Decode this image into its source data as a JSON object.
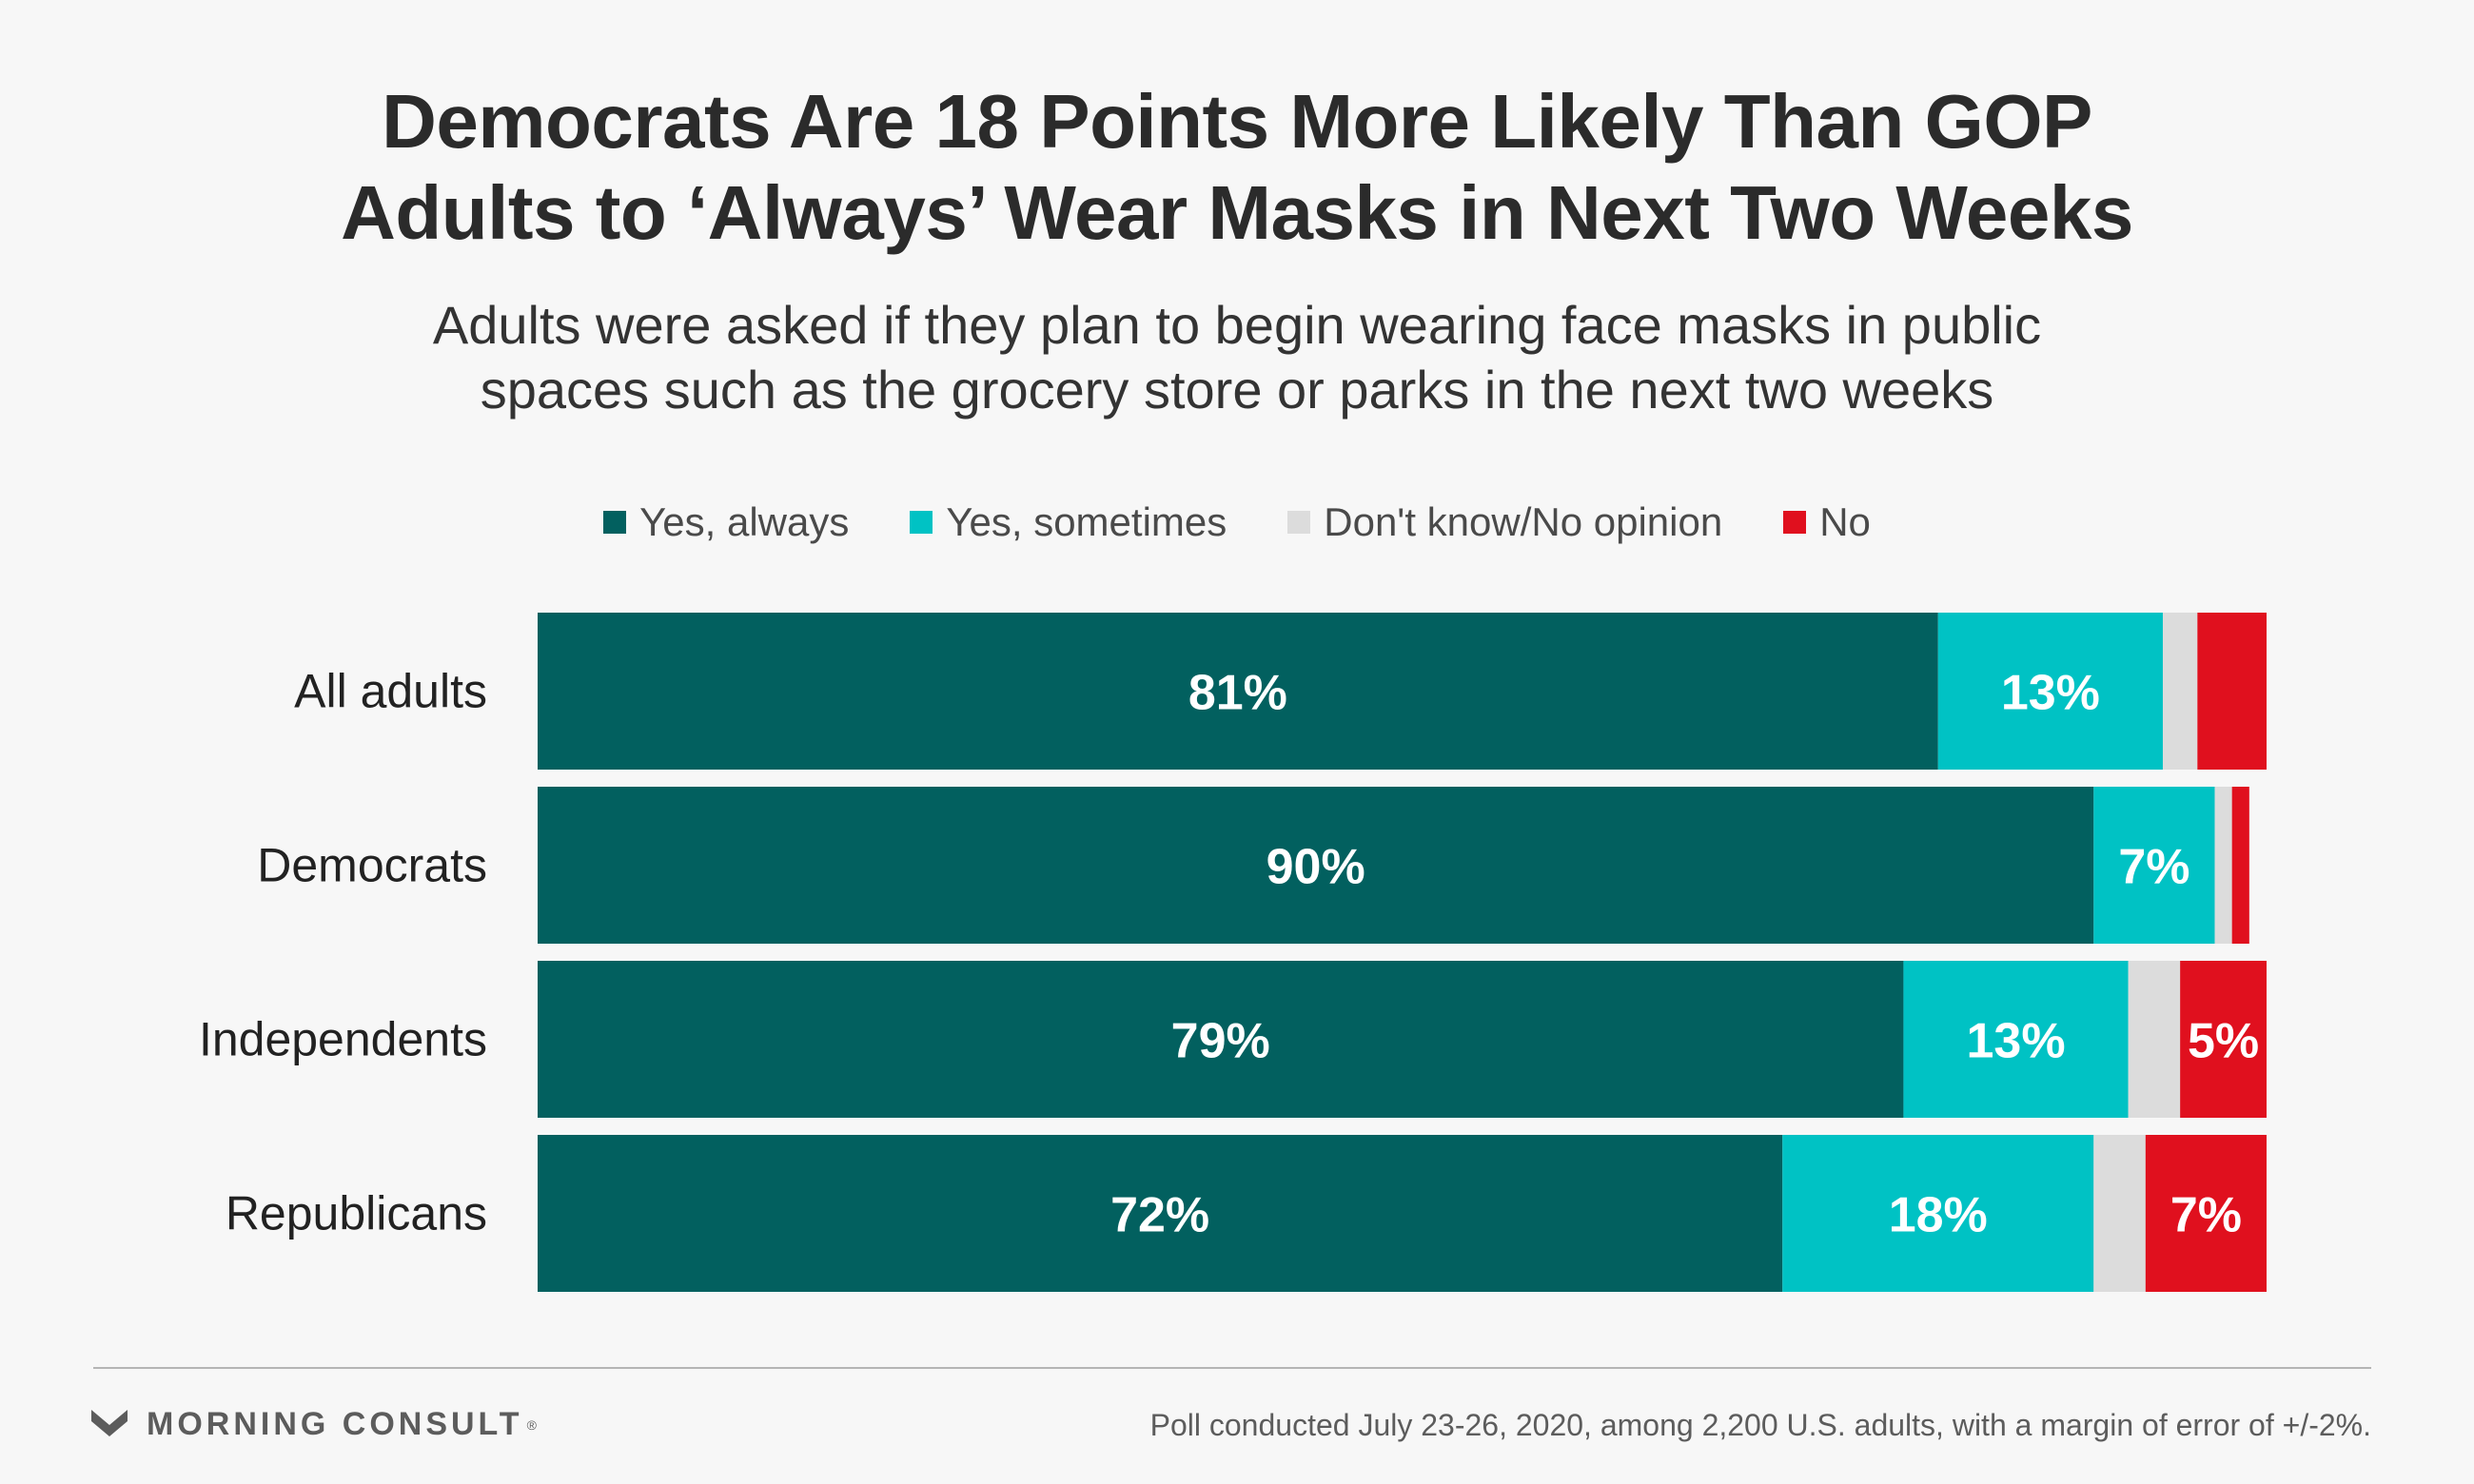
{
  "title": {
    "line1": "Democrats Are 18 Points More Likely Than GOP",
    "line2": "Adults to ‘Always’ Wear Masks in Next Two Weeks"
  },
  "subtitle": {
    "line1": "Adults were asked if they plan to begin wearing face masks in public",
    "line2": "spaces such as the grocery store or parks in the next two weeks"
  },
  "colors": {
    "yes_always": "#02605f",
    "yes_sometimes": "#00c2c4",
    "dont_know": "#dcdcdc",
    "no": "#e0101e"
  },
  "chart_data": {
    "type": "bar",
    "orientation": "horizontal",
    "stacked": true,
    "xlim": [
      0,
      100
    ],
    "legend_position": "top-center",
    "categories": [
      "All adults",
      "Democrats",
      "Independents",
      "Republicans"
    ],
    "series": [
      {
        "name": "Yes, always",
        "key": "yes_always",
        "values": [
          81,
          90,
          79,
          72
        ],
        "labels": [
          "81%",
          "90%",
          "79%",
          "72%"
        ]
      },
      {
        "name": "Yes, sometimes",
        "key": "yes_sometimes",
        "values": [
          13,
          7,
          13,
          18
        ],
        "labels": [
          "13%",
          "7%",
          "13%",
          "18%"
        ]
      },
      {
        "name": "Don't know/No opinion",
        "key": "dont_know",
        "values": [
          2,
          1,
          3,
          3
        ],
        "labels": [
          "",
          "",
          "",
          ""
        ]
      },
      {
        "name": "No",
        "key": "no",
        "values": [
          4,
          1,
          5,
          7
        ],
        "labels": [
          "",
          "",
          "5%",
          "7%"
        ]
      }
    ]
  },
  "footer": {
    "brand": "MORNING CONSULT",
    "brand_mark": "®",
    "logo_icon": "mc-logo-icon",
    "note": "Poll conducted July 23-26, 2020, among 2,200 U.S. adults, with a margin of error of +/-2%."
  }
}
